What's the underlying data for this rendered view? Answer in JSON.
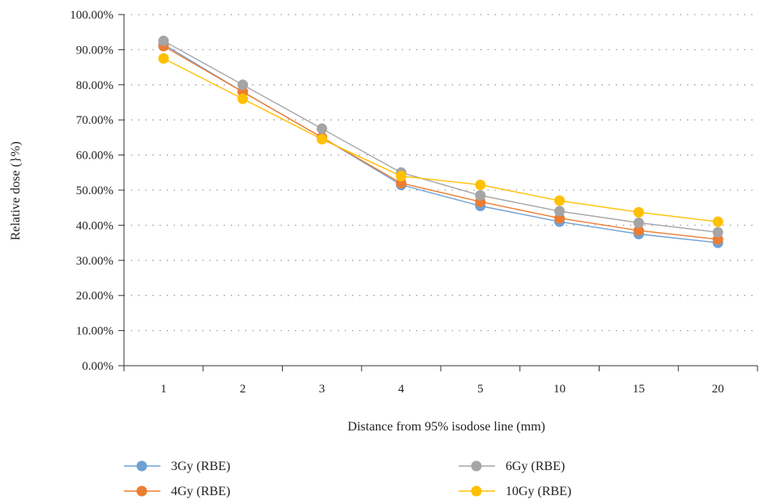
{
  "chart_data": {
    "type": "line",
    "title": "",
    "xlabel": "Distance from 95% isodose line (mm)",
    "ylabel": "Relative dose (}%)",
    "categories": [
      "1",
      "2",
      "3",
      "4",
      "5",
      "10",
      "15",
      "20"
    ],
    "y_ticks": [
      "0.00%",
      "10.00%",
      "20.00%",
      "30.00%",
      "40.00%",
      "50.00%",
      "60.00%",
      "70.00%",
      "80.00%",
      "90.00%",
      "100.00%"
    ],
    "ylim": [
      0,
      100
    ],
    "grid": "horizontal dotted",
    "legend_position": "bottom",
    "series": [
      {
        "name": "3Gy (RBE)",
        "color": "#6fa0d3",
        "values": [
          91.5,
          78.0,
          65.0,
          51.5,
          45.5,
          41.0,
          37.5,
          35.0
        ]
      },
      {
        "name": "4Gy (RBE)",
        "color": "#ed7d31",
        "values": [
          91.0,
          78.0,
          65.0,
          52.0,
          46.7,
          42.0,
          38.5,
          36.0
        ]
      },
      {
        "name": "6Gy (RBE)",
        "color": "#a5a5a5",
        "values": [
          92.5,
          80.0,
          67.5,
          55.0,
          48.5,
          44.0,
          40.7,
          38.0
        ]
      },
      {
        "name": "10Gy (RBE)",
        "color": "#ffc000",
        "values": [
          87.5,
          76.0,
          64.5,
          54.0,
          51.5,
          47.0,
          43.7,
          41.0
        ]
      }
    ]
  }
}
